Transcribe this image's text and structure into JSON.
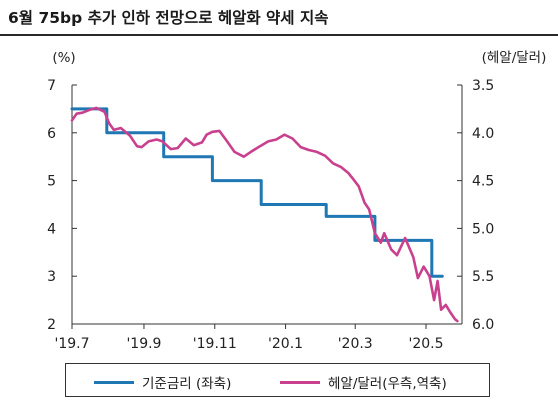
{
  "title": "6월 75bp 추가 인하 전망으로 헤알화 약세 지속",
  "chart_data": {
    "type": "line",
    "left_axis": {
      "unit_label": "(%)",
      "ylim": [
        2,
        7
      ],
      "ticks": [
        2,
        3,
        4,
        5,
        6,
        7
      ]
    },
    "right_axis": {
      "unit_label": "(헤알/달러)",
      "ylim": [
        6.0,
        3.5
      ],
      "inverted": true,
      "ticks": [
        "3.5",
        "4.0",
        "4.5",
        "5.0",
        "5.5",
        "6.0"
      ]
    },
    "x_axis": {
      "range": [
        "2019-07-01",
        "2020-06-01"
      ],
      "ticks": [
        {
          "date": "2019-07-01",
          "label": "'19.7"
        },
        {
          "date": "2019-09-01",
          "label": "'19.9"
        },
        {
          "date": "2019-11-01",
          "label": "'19.11"
        },
        {
          "date": "2020-01-01",
          "label": "'20.1"
        },
        {
          "date": "2020-03-01",
          "label": "'20.3"
        },
        {
          "date": "2020-05-01",
          "label": "'20.5"
        }
      ]
    },
    "series": [
      {
        "name": "기준금리 (좌축)",
        "axis": "left",
        "color": "#1f77b4",
        "step": true,
        "points": [
          [
            "2019-07-01",
            6.5
          ],
          [
            "2019-07-31",
            6.0
          ],
          [
            "2019-09-18",
            5.5
          ],
          [
            "2019-10-30",
            5.0
          ],
          [
            "2019-12-11",
            4.5
          ],
          [
            "2020-02-05",
            4.25
          ],
          [
            "2020-03-18",
            3.75
          ],
          [
            "2020-05-06",
            3.0
          ],
          [
            "2020-05-15",
            3.0
          ]
        ]
      },
      {
        "name": "헤알/달러(우측,역축)",
        "axis": "right",
        "color": "#c9418e",
        "step": false,
        "points": [
          [
            "2019-07-01",
            3.87
          ],
          [
            "2019-07-05",
            3.8
          ],
          [
            "2019-07-10",
            3.79
          ],
          [
            "2019-07-16",
            3.76
          ],
          [
            "2019-07-22",
            3.74
          ],
          [
            "2019-07-29",
            3.78
          ],
          [
            "2019-08-02",
            3.9
          ],
          [
            "2019-08-06",
            3.97
          ],
          [
            "2019-08-12",
            3.95
          ],
          [
            "2019-08-20",
            4.03
          ],
          [
            "2019-08-26",
            4.14
          ],
          [
            "2019-08-30",
            4.15
          ],
          [
            "2019-09-05",
            4.09
          ],
          [
            "2019-09-12",
            4.07
          ],
          [
            "2019-09-17",
            4.09
          ],
          [
            "2019-09-24",
            4.17
          ],
          [
            "2019-09-30",
            4.16
          ],
          [
            "2019-10-07",
            4.06
          ],
          [
            "2019-10-14",
            4.13
          ],
          [
            "2019-10-21",
            4.1
          ],
          [
            "2019-10-25",
            4.02
          ],
          [
            "2019-10-30",
            3.99
          ],
          [
            "2019-11-05",
            3.98
          ],
          [
            "2019-11-11",
            4.08
          ],
          [
            "2019-11-18",
            4.2
          ],
          [
            "2019-11-26",
            4.25
          ],
          [
            "2019-12-02",
            4.2
          ],
          [
            "2019-12-10",
            4.14
          ],
          [
            "2019-12-17",
            4.09
          ],
          [
            "2019-12-24",
            4.07
          ],
          [
            "2019-12-31",
            4.02
          ],
          [
            "2020-01-07",
            4.06
          ],
          [
            "2020-01-14",
            4.15
          ],
          [
            "2020-01-21",
            4.18
          ],
          [
            "2020-01-28",
            4.2
          ],
          [
            "2020-02-04",
            4.24
          ],
          [
            "2020-02-11",
            4.32
          ],
          [
            "2020-02-18",
            4.36
          ],
          [
            "2020-02-24",
            4.42
          ],
          [
            "2020-02-28",
            4.48
          ],
          [
            "2020-03-04",
            4.56
          ],
          [
            "2020-03-09",
            4.73
          ],
          [
            "2020-03-13",
            4.8
          ],
          [
            "2020-03-18",
            5.05
          ],
          [
            "2020-03-23",
            5.15
          ],
          [
            "2020-03-26",
            5.05
          ],
          [
            "2020-04-01",
            5.22
          ],
          [
            "2020-04-06",
            5.28
          ],
          [
            "2020-04-13",
            5.1
          ],
          [
            "2020-04-20",
            5.3
          ],
          [
            "2020-04-24",
            5.52
          ],
          [
            "2020-04-29",
            5.4
          ],
          [
            "2020-05-04",
            5.5
          ],
          [
            "2020-05-08",
            5.75
          ],
          [
            "2020-05-11",
            5.55
          ],
          [
            "2020-05-14",
            5.85
          ],
          [
            "2020-05-18",
            5.8
          ],
          [
            "2020-05-22",
            5.88
          ],
          [
            "2020-05-26",
            5.95
          ],
          [
            "2020-05-28",
            5.97
          ]
        ]
      }
    ]
  }
}
